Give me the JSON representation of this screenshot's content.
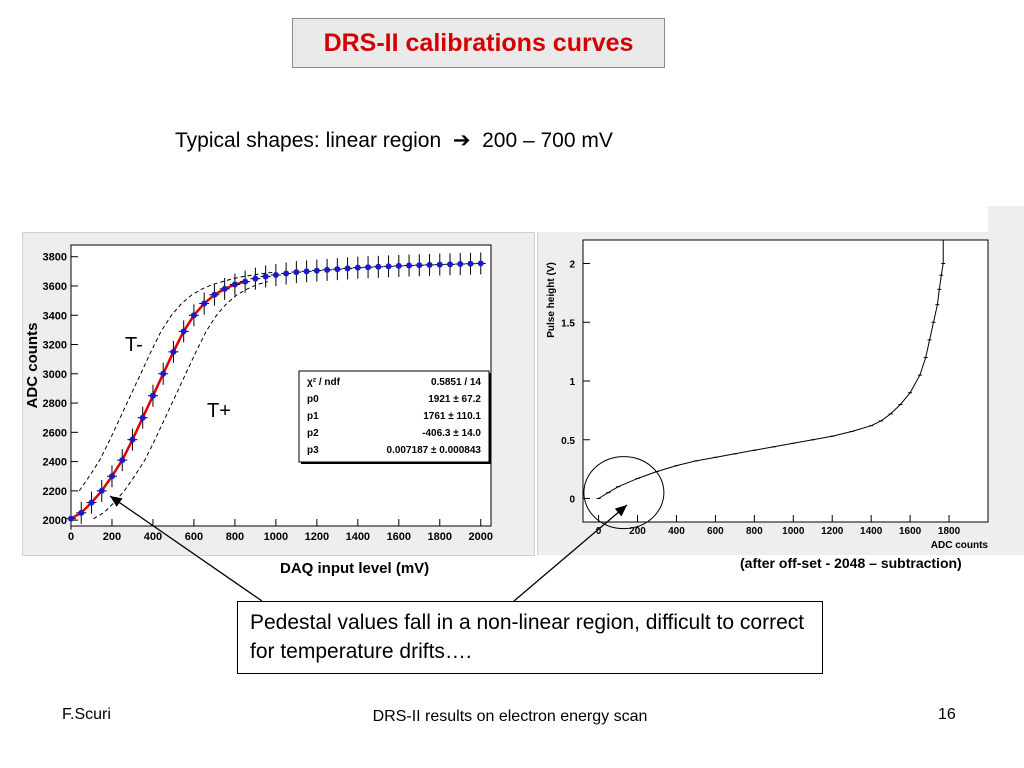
{
  "slide": {
    "title": "DRS-II calibrations curves",
    "subtitle_prefix": "Typical shapes: linear region",
    "subtitle_suffix": "200 – 700 mV",
    "left_plot_xlabel": "DAQ input level (mV)",
    "right_plot_note": "(after off-set - 2048 – subtraction)",
    "callout": "Pedestal values fall in a non-linear region, difficult to correct for temperature drifts….",
    "footer_left": "F.Scuri",
    "footer_center": "DRS-II results on electron energy scan",
    "footer_right": "16"
  },
  "colors": {
    "title": "#d40000",
    "fit_curve": "#e00000",
    "points": "#1a1acc"
  },
  "chart_data": [
    {
      "type": "scatter",
      "xlabel": "DAQ input level (mV)",
      "ylabel": "ADC counts",
      "xlim": [
        0,
        2050
      ],
      "ylim": [
        1960,
        3880
      ],
      "xticks": [
        0,
        200,
        400,
        600,
        800,
        1000,
        1200,
        1400,
        1600,
        1800,
        2000
      ],
      "yticks": [
        2000,
        2200,
        2400,
        2600,
        2800,
        3000,
        3200,
        3400,
        3600,
        3800
      ],
      "annotations": [
        "T-",
        "T+"
      ],
      "fit_stats": [
        {
          "name": "χ² / ndf",
          "value": "0.5851 / 14"
        },
        {
          "name": "p0",
          "value": "1921 ± 67.2"
        },
        {
          "name": "p1",
          "value": "1761 ± 110.1"
        },
        {
          "name": "p2",
          "value": "-406.3 ± 14.0"
        },
        {
          "name": "p3",
          "value": "0.007187 ± 0.000843"
        }
      ],
      "series": [
        {
          "x": [
            0,
            50,
            100,
            150,
            200,
            250,
            300,
            350,
            400,
            450,
            500,
            550,
            600,
            650,
            700,
            750,
            800,
            850,
            900,
            950,
            1000,
            1050,
            1100,
            1150,
            1200,
            1250,
            1300,
            1350,
            1400,
            1450,
            1500,
            1550,
            1600,
            1650,
            1700,
            1750,
            1800,
            1850,
            1900,
            1950,
            2000
          ],
          "y": [
            2010,
            2050,
            2120,
            2200,
            2300,
            2410,
            2550,
            2700,
            2850,
            3000,
            3150,
            3290,
            3400,
            3480,
            3540,
            3580,
            3610,
            3630,
            3650,
            3665,
            3675,
            3685,
            3695,
            3700,
            3705,
            3710,
            3715,
            3720,
            3725,
            3728,
            3731,
            3734,
            3737,
            3740,
            3742,
            3744,
            3746,
            3748,
            3750,
            3752,
            3754
          ]
        }
      ]
    },
    {
      "type": "line",
      "xlabel": "ADC counts",
      "ylabel": "Pulse height (V)",
      "xlim": [
        -80,
        2000
      ],
      "ylim": [
        -0.2,
        2.2
      ],
      "xticks": [
        0,
        200,
        400,
        600,
        800,
        1000,
        1200,
        1400,
        1600,
        1800
      ],
      "yticks": [
        0,
        0.5,
        1,
        1.5,
        2
      ],
      "ytick_labels": [
        "0",
        "0.5",
        "1",
        "1.5",
        "2"
      ],
      "series": [
        {
          "x": [
            0,
            50,
            100,
            200,
            300,
            400,
            500,
            600,
            700,
            800,
            900,
            1000,
            1100,
            1200,
            1300,
            1400,
            1450,
            1500,
            1550,
            1600,
            1650,
            1680,
            1700,
            1720,
            1740,
            1750,
            1760,
            1770
          ],
          "y": [
            0.0,
            0.05,
            0.1,
            0.17,
            0.23,
            0.28,
            0.32,
            0.35,
            0.38,
            0.41,
            0.44,
            0.47,
            0.5,
            0.53,
            0.57,
            0.62,
            0.66,
            0.72,
            0.8,
            0.9,
            1.05,
            1.2,
            1.35,
            1.5,
            1.65,
            1.78,
            1.9,
            2.0
          ]
        }
      ]
    }
  ]
}
